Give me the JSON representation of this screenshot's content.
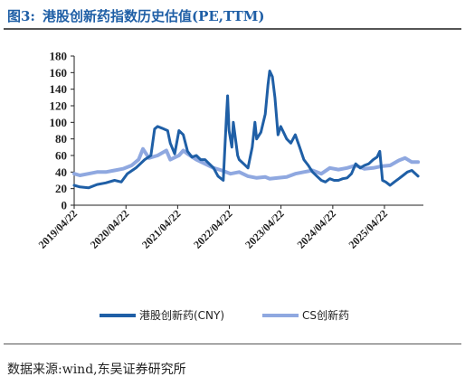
{
  "header": {
    "label": "图3:",
    "title": "港股创新药指数历史估值(PE,TTM)"
  },
  "source": "数据来源:wind,东吴证券研究所",
  "colors": {
    "cny": "#1f5fa6",
    "cs": "#8fa8e0",
    "title": "#1f5fa6"
  },
  "chart_data": {
    "type": "line",
    "title": "",
    "xlabel": "",
    "ylabel": "",
    "ylim": [
      0,
      180
    ],
    "yticks": [
      0,
      20,
      40,
      60,
      80,
      100,
      120,
      140,
      160,
      180
    ],
    "xlim": [
      "2019-04-22",
      "2026-01-22"
    ],
    "xticks": [
      "2019/04/22",
      "2020/04/22",
      "2021/04/22",
      "2022/04/22",
      "2023/04/22",
      "2024/04/22",
      "2025/04/22"
    ],
    "grid": false,
    "legend_position": "bottom",
    "series": [
      {
        "name": "港股创新药(CNY)",
        "color": "#1f5fa6",
        "points": [
          [
            "2019-04-22",
            24
          ],
          [
            "2019-06-01",
            22
          ],
          [
            "2019-08-01",
            21
          ],
          [
            "2019-10-01",
            25
          ],
          [
            "2019-12-01",
            27
          ],
          [
            "2020-02-01",
            30
          ],
          [
            "2020-03-20",
            28
          ],
          [
            "2020-05-01",
            38
          ],
          [
            "2020-07-01",
            45
          ],
          [
            "2020-09-01",
            55
          ],
          [
            "2020-10-15",
            60
          ],
          [
            "2020-11-10",
            92
          ],
          [
            "2020-12-01",
            95
          ],
          [
            "2021-01-01",
            93
          ],
          [
            "2021-02-10",
            90
          ],
          [
            "2021-03-01",
            75
          ],
          [
            "2021-04-01",
            62
          ],
          [
            "2021-05-01",
            90
          ],
          [
            "2021-06-01",
            85
          ],
          [
            "2021-07-01",
            65
          ],
          [
            "2021-08-01",
            58
          ],
          [
            "2021-09-01",
            60
          ],
          [
            "2021-10-01",
            55
          ],
          [
            "2021-11-01",
            55
          ],
          [
            "2021-12-01",
            50
          ],
          [
            "2022-01-01",
            45
          ],
          [
            "2022-02-01",
            35
          ],
          [
            "2022-03-10",
            30
          ],
          [
            "2022-04-01",
            105
          ],
          [
            "2022-04-10",
            132
          ],
          [
            "2022-04-20",
            90
          ],
          [
            "2022-05-10",
            70
          ],
          [
            "2022-05-20",
            100
          ],
          [
            "2022-06-01",
            85
          ],
          [
            "2022-06-20",
            60
          ],
          [
            "2022-07-01",
            55
          ],
          [
            "2022-08-01",
            50
          ],
          [
            "2022-09-01",
            45
          ],
          [
            "2022-10-01",
            70
          ],
          [
            "2022-10-20",
            100
          ],
          [
            "2022-11-01",
            80
          ],
          [
            "2022-12-01",
            88
          ],
          [
            "2023-01-01",
            110
          ],
          [
            "2023-01-20",
            145
          ],
          [
            "2023-02-01",
            162
          ],
          [
            "2023-02-20",
            155
          ],
          [
            "2023-03-10",
            130
          ],
          [
            "2023-04-01",
            85
          ],
          [
            "2023-04-20",
            95
          ],
          [
            "2023-05-10",
            88
          ],
          [
            "2023-06-01",
            80
          ],
          [
            "2023-07-01",
            75
          ],
          [
            "2023-08-01",
            85
          ],
          [
            "2023-09-01",
            70
          ],
          [
            "2023-10-01",
            55
          ],
          [
            "2023-11-01",
            48
          ],
          [
            "2023-12-01",
            40
          ],
          [
            "2024-01-01",
            35
          ],
          [
            "2024-02-01",
            30
          ],
          [
            "2024-03-01",
            28
          ],
          [
            "2024-04-01",
            32
          ],
          [
            "2024-05-01",
            30
          ],
          [
            "2024-06-01",
            30
          ],
          [
            "2024-07-01",
            32
          ],
          [
            "2024-08-01",
            33
          ],
          [
            "2024-09-01",
            38
          ],
          [
            "2024-10-01",
            50
          ],
          [
            "2024-11-01",
            45
          ],
          [
            "2024-12-01",
            48
          ],
          [
            "2025-01-01",
            50
          ],
          [
            "2025-02-01",
            55
          ],
          [
            "2025-03-01",
            58
          ],
          [
            "2025-03-20",
            65
          ],
          [
            "2025-04-08",
            30
          ],
          [
            "2025-05-01",
            28
          ],
          [
            "2025-06-01",
            24
          ],
          [
            "2025-07-01",
            28
          ],
          [
            "2025-08-01",
            32
          ],
          [
            "2025-09-01",
            36
          ],
          [
            "2025-10-01",
            40
          ],
          [
            "2025-11-01",
            42
          ],
          [
            "2025-12-15",
            35
          ]
        ]
      },
      {
        "name": "CS创新药",
        "color": "#8fa8e0",
        "points": [
          [
            "2019-04-22",
            38
          ],
          [
            "2019-06-01",
            36
          ],
          [
            "2019-08-01",
            38
          ],
          [
            "2019-10-01",
            40
          ],
          [
            "2019-12-01",
            40
          ],
          [
            "2020-02-01",
            42
          ],
          [
            "2020-04-01",
            44
          ],
          [
            "2020-06-01",
            48
          ],
          [
            "2020-07-20",
            55
          ],
          [
            "2020-08-20",
            68
          ],
          [
            "2020-10-01",
            57
          ],
          [
            "2020-12-01",
            60
          ],
          [
            "2021-02-01",
            66
          ],
          [
            "2021-03-01",
            55
          ],
          [
            "2021-05-01",
            60
          ],
          [
            "2021-06-01",
            66
          ],
          [
            "2021-07-01",
            62
          ],
          [
            "2021-09-01",
            55
          ],
          [
            "2021-11-01",
            50
          ],
          [
            "2022-01-01",
            45
          ],
          [
            "2022-03-01",
            42
          ],
          [
            "2022-05-01",
            38
          ],
          [
            "2022-07-01",
            40
          ],
          [
            "2022-09-01",
            35
          ],
          [
            "2022-11-01",
            33
          ],
          [
            "2023-01-01",
            34
          ],
          [
            "2023-02-01",
            32
          ],
          [
            "2023-04-01",
            33
          ],
          [
            "2023-06-01",
            34
          ],
          [
            "2023-08-01",
            38
          ],
          [
            "2023-10-01",
            40
          ],
          [
            "2023-12-01",
            42
          ],
          [
            "2024-02-01",
            38
          ],
          [
            "2024-04-01",
            45
          ],
          [
            "2024-06-01",
            43
          ],
          [
            "2024-08-01",
            45
          ],
          [
            "2024-10-01",
            48
          ],
          [
            "2024-12-01",
            44
          ],
          [
            "2025-02-01",
            45
          ],
          [
            "2025-04-01",
            47
          ],
          [
            "2025-06-01",
            48
          ],
          [
            "2025-08-01",
            54
          ],
          [
            "2025-09-15",
            57
          ],
          [
            "2025-11-01",
            52
          ],
          [
            "2025-12-15",
            52
          ]
        ]
      }
    ]
  }
}
